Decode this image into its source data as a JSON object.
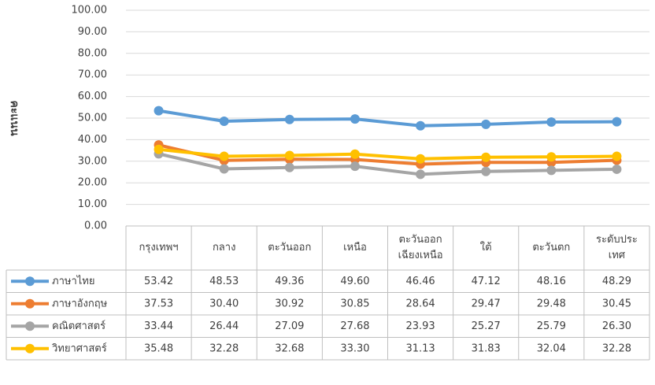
{
  "chart_data": {
    "type": "line",
    "y_label": "คะแนน",
    "categories": [
      "กรุงเทพฯ",
      "กลาง",
      "ตะวันออก",
      "เหนือ",
      "ตะวันออก\nเฉียงเหนือ",
      "ใต้",
      "ตะวันตก",
      "ระดับประ\nเทศ"
    ],
    "series": [
      {
        "name": "ภาษาไทย",
        "color": "#5b9bd5",
        "values": [
          53.42,
          48.53,
          49.36,
          49.6,
          46.46,
          47.12,
          48.16,
          48.29
        ],
        "value_labels": [
          "53.42",
          "48.53",
          "49.36",
          "49.60",
          "46.46",
          "47.12",
          "48.16",
          "48.29"
        ]
      },
      {
        "name": "ภาษาอังกฤษ",
        "color": "#ed7d31",
        "values": [
          37.53,
          30.4,
          30.92,
          30.85,
          28.64,
          29.47,
          29.48,
          30.45
        ],
        "value_labels": [
          "37.53",
          "30.40",
          "30.92",
          "30.85",
          "28.64",
          "29.47",
          "29.48",
          "30.45"
        ]
      },
      {
        "name": "คณิตศาสตร์",
        "color": "#a5a5a5",
        "values": [
          33.44,
          26.44,
          27.09,
          27.68,
          23.93,
          25.27,
          25.79,
          26.3
        ],
        "value_labels": [
          "33.44",
          "26.44",
          "27.09",
          "27.68",
          "23.93",
          "25.27",
          "25.79",
          "26.30"
        ]
      },
      {
        "name": "วิทยาศาสตร์",
        "color": "#ffc000",
        "values": [
          35.48,
          32.28,
          32.68,
          33.3,
          31.13,
          31.83,
          32.04,
          32.28
        ],
        "value_labels": [
          "35.48",
          "32.28",
          "32.68",
          "33.30",
          "31.13",
          "31.83",
          "32.04",
          "32.28"
        ]
      }
    ],
    "ylim": [
      0,
      100
    ],
    "yticks": [
      {
        "value": 0,
        "label": "0.00"
      },
      {
        "value": 10,
        "label": "10.00"
      },
      {
        "value": 20,
        "label": "20.00"
      },
      {
        "value": 30,
        "label": "30.00"
      },
      {
        "value": 40,
        "label": "40.00"
      },
      {
        "value": 50,
        "label": "50.00"
      },
      {
        "value": 60,
        "label": "60.00"
      },
      {
        "value": 70,
        "label": "70.00"
      },
      {
        "value": 80,
        "label": "80.00"
      },
      {
        "value": 90,
        "label": "90.00"
      },
      {
        "value": 100,
        "label": "100.00"
      }
    ],
    "grid": true,
    "data_table": true
  }
}
